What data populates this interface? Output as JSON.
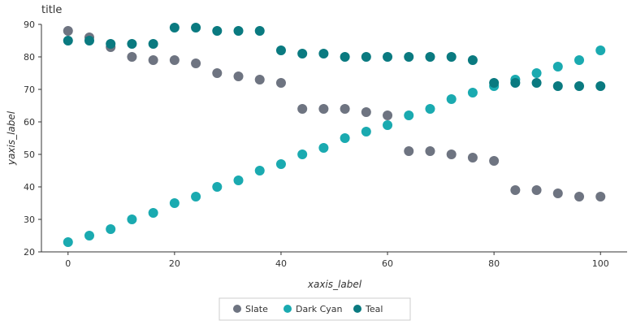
{
  "chart_data": {
    "type": "scatter",
    "title": "title",
    "xlabel": "xaxis_label",
    "ylabel": "yaxis_label",
    "xlim": [
      -5,
      105
    ],
    "ylim": [
      20,
      90
    ],
    "xticks": [
      0,
      20,
      40,
      60,
      80,
      100
    ],
    "yticks": [
      20,
      30,
      40,
      50,
      60,
      70,
      80,
      90
    ],
    "grid": false,
    "legend_position": "bottom",
    "series": [
      {
        "name": "Slate",
        "color": "#6e7481",
        "x": [
          0,
          4,
          8,
          12,
          16,
          20,
          24,
          28,
          32,
          36,
          40,
          44,
          48,
          52,
          56,
          60,
          64,
          68,
          72,
          76,
          80,
          84,
          88,
          92,
          96,
          100
        ],
        "y": [
          88,
          86,
          83,
          80,
          79,
          79,
          78,
          75,
          74,
          73,
          72,
          64,
          64,
          64,
          63,
          62,
          51,
          51,
          50,
          49,
          48,
          39,
          39,
          38,
          37,
          37
        ]
      },
      {
        "name": "Dark Cyan",
        "color": "#1aaab0",
        "x": [
          0,
          4,
          8,
          12,
          16,
          20,
          24,
          28,
          32,
          36,
          40,
          44,
          48,
          52,
          56,
          60,
          64,
          68,
          72,
          76,
          80,
          84,
          88,
          92,
          96,
          100
        ],
        "y": [
          23,
          25,
          27,
          30,
          32,
          35,
          37,
          40,
          42,
          45,
          47,
          50,
          52,
          55,
          57,
          59,
          62,
          64,
          67,
          69,
          71,
          73,
          75,
          77,
          79,
          82
        ]
      },
      {
        "name": "Teal",
        "color": "#0a7a80",
        "x": [
          0,
          4,
          8,
          12,
          16,
          20,
          24,
          28,
          32,
          36,
          40,
          44,
          48,
          52,
          56,
          60,
          64,
          68,
          72,
          76,
          80,
          84,
          88,
          92,
          96,
          100
        ],
        "y": [
          85,
          85,
          84,
          84,
          84,
          89,
          89,
          88,
          88,
          88,
          82,
          81,
          81,
          80,
          80,
          80,
          80,
          80,
          80,
          79,
          72,
          72,
          72,
          71,
          71,
          71
        ]
      }
    ]
  }
}
